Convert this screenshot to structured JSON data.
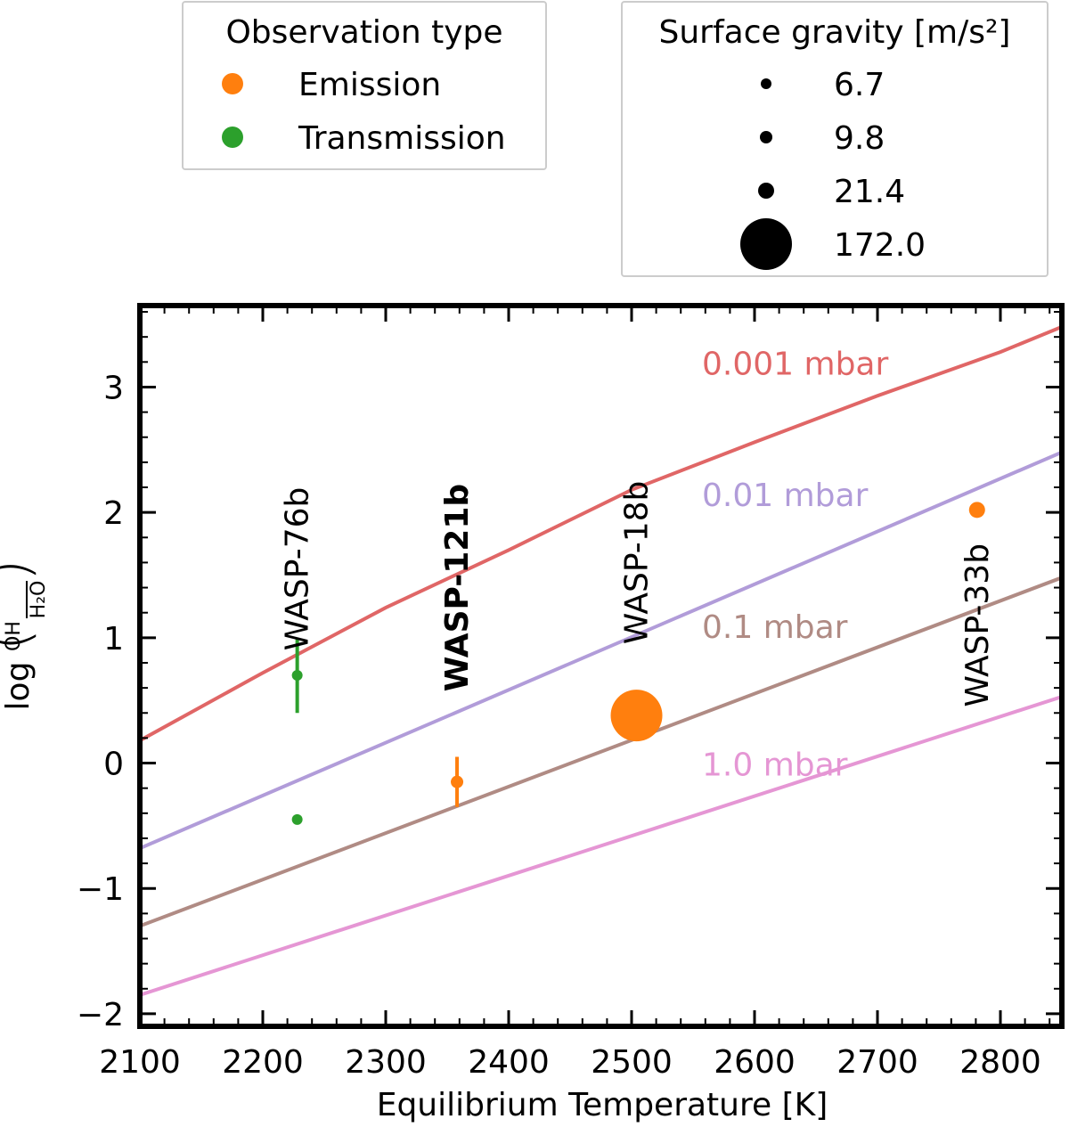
{
  "chart_data": {
    "type": "scatter",
    "xlabel": "Equilibrium Temperature [K]",
    "ylabel_prefix": "log",
    "ylabel_frac_num": "OH",
    "ylabel_frac_den": "H₂O",
    "xlim": [
      2100,
      2850
    ],
    "ylim": [
      -2.1,
      3.65
    ],
    "xticks": [
      2100,
      2200,
      2300,
      2400,
      2500,
      2600,
      2700,
      2800
    ],
    "yticks": [
      -2,
      -1,
      0,
      1,
      2,
      3
    ],
    "xtick_labels": [
      "2100",
      "2200",
      "2300",
      "2400",
      "2500",
      "2600",
      "2700",
      "2800"
    ],
    "ytick_labels": [
      "−2",
      "−1",
      "0",
      "1",
      "2",
      "3"
    ],
    "lines": [
      {
        "name": "0.001 mbar",
        "color": "#e06666",
        "label_at": [
          2550,
          3.1
        ],
        "x": [
          2100,
          2200,
          2300,
          2400,
          2500,
          2600,
          2700,
          2800,
          2850
        ],
        "y": [
          0.18,
          0.72,
          1.24,
          1.7,
          2.18,
          2.56,
          2.93,
          3.28,
          3.48
        ]
      },
      {
        "name": "0.01 mbar",
        "color": "#b19cd9",
        "label_at": [
          2550,
          2.05
        ],
        "x": [
          2100,
          2850
        ],
        "y": [
          -0.68,
          2.48
        ]
      },
      {
        "name": "0.1 mbar",
        "color": "#b08b84",
        "label_at": [
          2550,
          1.0
        ],
        "x": [
          2100,
          2850
        ],
        "y": [
          -1.3,
          1.48
        ]
      },
      {
        "name": "1.0 mbar",
        "color": "#e596d4",
        "label_at": [
          2550,
          -0.1
        ],
        "x": [
          2100,
          2850
        ],
        "y": [
          -1.85,
          0.53
        ]
      }
    ],
    "points": [
      {
        "planet": "WASP-76b",
        "x": 2228,
        "y": 0.7,
        "yerr": [
          0.3,
          0.3
        ],
        "type": "Transmission",
        "gravity": 6.7
      },
      {
        "planet": "WASP-76b",
        "x": 2228,
        "y": -0.45,
        "yerr": null,
        "type": "Transmission",
        "gravity": 6.7
      },
      {
        "planet": "WASP-121b",
        "x": 2358,
        "y": -0.15,
        "yerr": [
          0.2,
          0.2
        ],
        "type": "Emission",
        "gravity": 9.8
      },
      {
        "planet": "WASP-18b",
        "x": 2504,
        "y": 0.38,
        "yerr": null,
        "type": "Emission",
        "gravity": 172.0
      },
      {
        "planet": "WASP-33b",
        "x": 2781,
        "y": 2.02,
        "yerr": null,
        "type": "Emission",
        "gravity": 21.4
      }
    ],
    "planet_labels": [
      {
        "text": "WASP-76b",
        "x": 2228,
        "y": 1.55,
        "bold": false
      },
      {
        "text": "WASP-121b",
        "x": 2358,
        "y": 1.4,
        "bold": true
      },
      {
        "text": "WASP-18b",
        "x": 2504,
        "y": 1.6,
        "bold": false
      },
      {
        "text": "WASP-33b",
        "x": 2781,
        "y": 1.1,
        "bold": false
      }
    ],
    "legend_type": {
      "title": "Observation type",
      "entries": [
        {
          "label": "Emission",
          "color": "#ff7f0e"
        },
        {
          "label": "Transmission",
          "color": "#2ca02c"
        }
      ]
    },
    "legend_gravity": {
      "title": "Surface gravity [m/s²]",
      "entries": [
        {
          "label": "6.7",
          "value": 6.7
        },
        {
          "label": "9.8",
          "value": 9.8
        },
        {
          "label": "21.4",
          "value": 21.4
        },
        {
          "label": "172.0",
          "value": 172.0
        }
      ]
    },
    "colors": {
      "Emission": "#ff7f0e",
      "Transmission": "#2ca02c",
      "frame": "#000000"
    }
  }
}
